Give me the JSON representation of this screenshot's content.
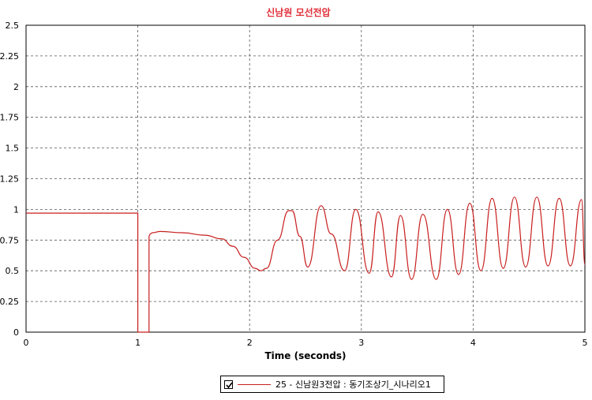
{
  "chart_data": {
    "type": "line",
    "title": "신남원 모선전압",
    "xlabel": "Time (seconds)",
    "ylabel": "",
    "xlim": [
      0,
      5
    ],
    "ylim": [
      0,
      2.5
    ],
    "x_ticks": [
      "0",
      "1",
      "2",
      "3",
      "4",
      "5"
    ],
    "y_ticks": [
      "0",
      "0.25",
      "0.5",
      "0.75",
      "1",
      "1.25",
      "1.5",
      "1.75",
      "2",
      "2.25",
      "2.5"
    ],
    "grid": true,
    "legend_position": "bottom",
    "series": [
      {
        "name": "25 - 신남원3전압 : 동기조상기_시나리오1",
        "color": "#c81e1e",
        "x": [
          0,
          1.0,
          1.0,
          1.1,
          1.1,
          1.11,
          1.13,
          1.2,
          1.4,
          1.6,
          1.75,
          1.85,
          1.95,
          2.05,
          2.1,
          2.15,
          2.25,
          2.35,
          2.38,
          2.45,
          2.52,
          2.64,
          2.73,
          2.85,
          2.95,
          3.07,
          3.15,
          3.27,
          3.35,
          3.45,
          3.55,
          3.67,
          3.77,
          3.87,
          3.97,
          4.07,
          4.17,
          4.27,
          4.37,
          4.47,
          4.57,
          4.67,
          4.77,
          4.87,
          4.97,
          5.0
        ],
        "values": [
          0.97,
          0.97,
          0,
          0,
          0.78,
          0.8,
          0.81,
          0.82,
          0.81,
          0.79,
          0.76,
          0.7,
          0.61,
          0.52,
          0.5,
          0.52,
          0.75,
          0.99,
          0.99,
          0.78,
          0.53,
          1.03,
          0.8,
          0.5,
          1.0,
          0.48,
          0.98,
          0.45,
          0.95,
          0.43,
          0.96,
          0.43,
          1.0,
          0.47,
          1.05,
          0.5,
          1.09,
          0.52,
          1.1,
          0.53,
          1.1,
          0.54,
          1.09,
          0.54,
          1.08,
          0.55
        ]
      }
    ]
  },
  "legend": {
    "label": "25 - 신남원3전압 : 동기조상기_시나리오1"
  }
}
